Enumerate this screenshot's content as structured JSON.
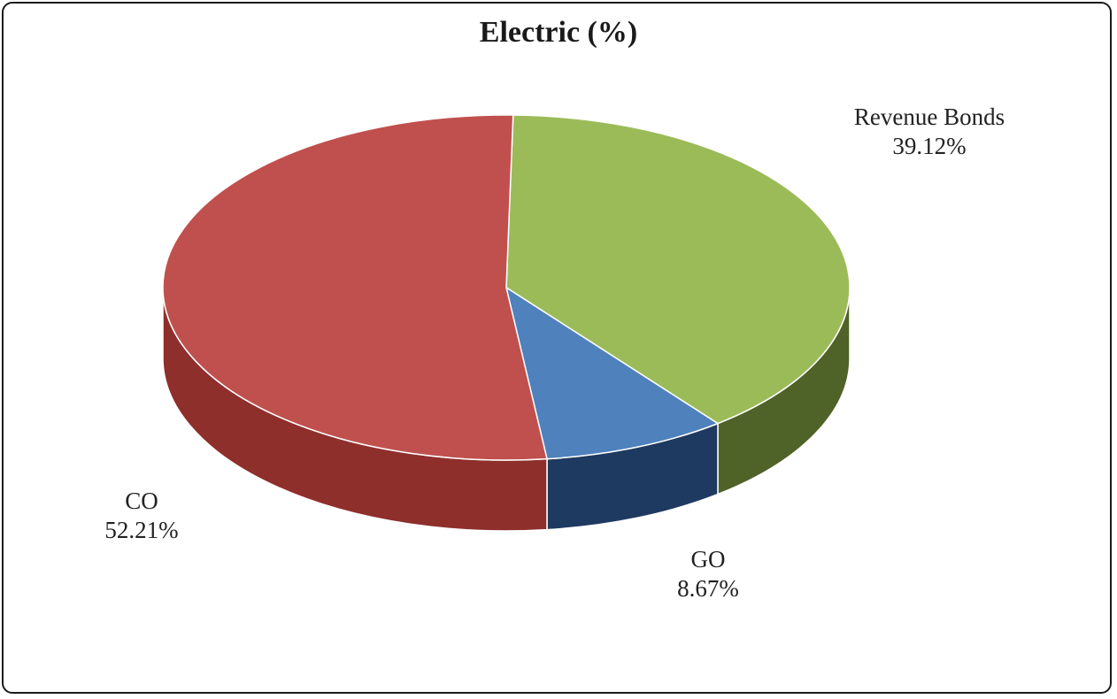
{
  "chart_data": {
    "type": "pie",
    "style": "3d",
    "title": "Electric (%)",
    "slices": [
      {
        "label": "Revenue Bonds",
        "value": 39.12,
        "value_label": "39.12%",
        "color": "#9BBB59",
        "side_color": "#4F6228"
      },
      {
        "label": "GO",
        "value": 8.67,
        "value_label": "8.67%",
        "color": "#4F81BD",
        "side_color": "#1F3A60"
      },
      {
        "label": "CO",
        "value": 52.21,
        "value_label": "52.21%",
        "color": "#C0504D",
        "side_color": "#8E2F2C"
      }
    ]
  }
}
